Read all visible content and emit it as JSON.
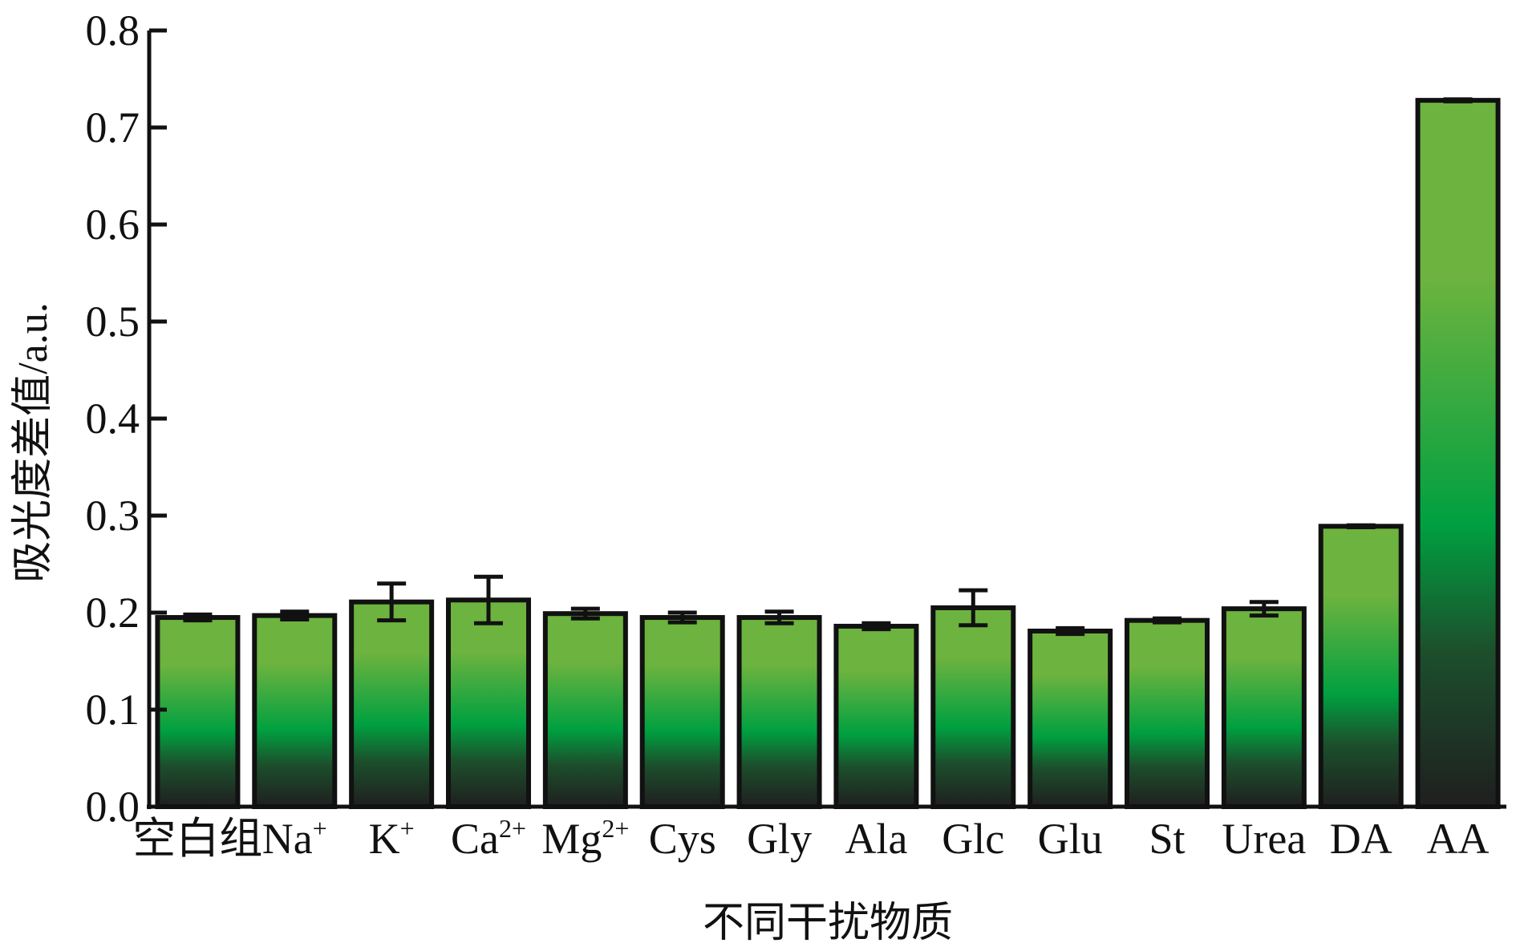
{
  "chart_data": {
    "type": "bar",
    "xlabel": "不同干扰物质",
    "ylabel": "吸光度差值/a.u.",
    "ylim": [
      0,
      0.8
    ],
    "yticks": [
      0.0,
      0.1,
      0.2,
      0.3,
      0.4,
      0.5,
      0.6,
      0.7,
      0.8
    ],
    "ytick_labels": [
      "0.0",
      "0.1",
      "0.2",
      "0.3",
      "0.4",
      "0.5",
      "0.6",
      "0.7",
      "0.8"
    ],
    "categories": [
      {
        "base": "空白组",
        "sup": ""
      },
      {
        "base": "Na",
        "sup": "+"
      },
      {
        "base": "K",
        "sup": "+"
      },
      {
        "base": "Ca",
        "sup": "2+"
      },
      {
        "base": "Mg",
        "sup": "2+"
      },
      {
        "base": "Cys",
        "sup": ""
      },
      {
        "base": "Gly",
        "sup": ""
      },
      {
        "base": "Ala",
        "sup": ""
      },
      {
        "base": "Glc",
        "sup": ""
      },
      {
        "base": "Glu",
        "sup": ""
      },
      {
        "base": "St",
        "sup": ""
      },
      {
        "base": "Urea",
        "sup": ""
      },
      {
        "base": "DA",
        "sup": ""
      },
      {
        "base": "AA",
        "sup": ""
      }
    ],
    "values": [
      0.195,
      0.197,
      0.211,
      0.213,
      0.199,
      0.195,
      0.195,
      0.186,
      0.205,
      0.181,
      0.192,
      0.204,
      0.289,
      0.728
    ],
    "errors": [
      0.003,
      0.004,
      0.019,
      0.024,
      0.005,
      0.005,
      0.006,
      0.003,
      0.018,
      0.003,
      0.002,
      0.007,
      0.001,
      0.001
    ],
    "grid": false,
    "legend": "none",
    "colors": {
      "bar_top": "#6db33f",
      "bar_mid": "#00a040",
      "bar_dark": "#1c4f2c",
      "bar_bottom": "#1f1f1f",
      "outline": "#111111"
    }
  }
}
